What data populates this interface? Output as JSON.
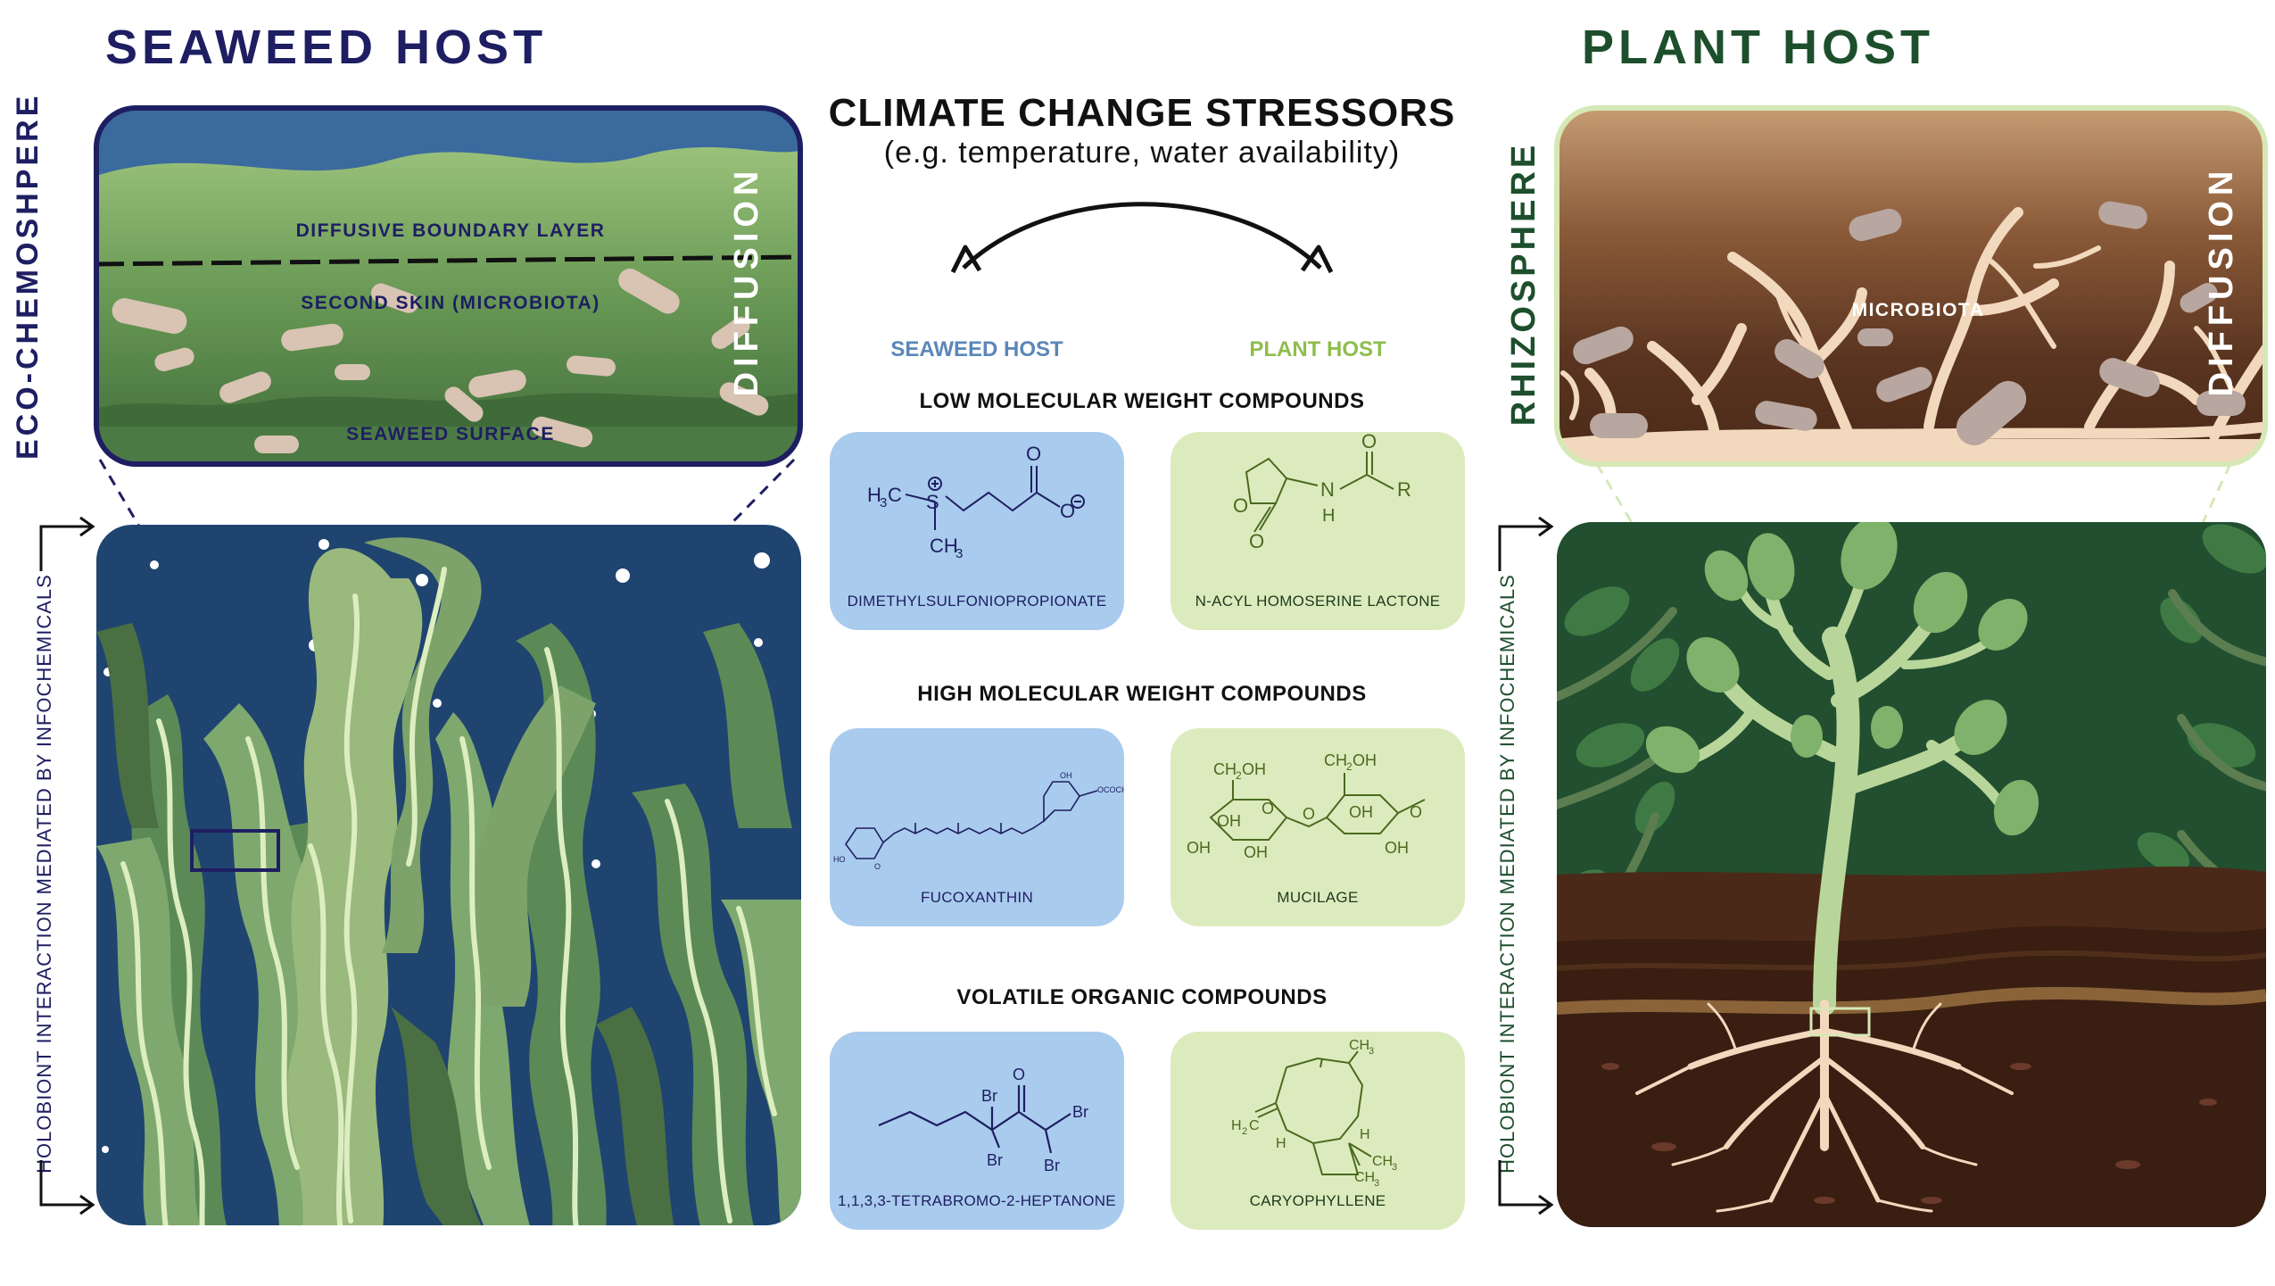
{
  "seaweed": {
    "title": "SEAWEED HOST",
    "side_label": "ECO-CHEMOSHPERE",
    "zoom_labels": [
      "DIFFUSIVE BOUNDARY LAYER",
      "SECOND SKIN (MICROBIOTA)",
      "SEAWEED SURFACE"
    ],
    "diffusion": "DIFFUSION",
    "holobiont": "HOLOBIONT INTERACTION MEDIATED BY INFOCHEMICALS"
  },
  "plant": {
    "title": "PLANT HOST",
    "side_label": "RHIZOSPHERE",
    "zoom_label": "MICROBIOTA",
    "diffusion": "DIFFUSION",
    "holobiont": "HOLOBIONT INTERACTION MEDIATED BY INFOCHEMICALS"
  },
  "center": {
    "title": "CLIMATE CHANGE STRESSORS",
    "subtitle": "(e.g. temperature, water availability)",
    "seaweed_host": "SEAWEED HOST",
    "plant_host": "PLANT HOST",
    "categories": [
      {
        "name": "LOW MOLECULAR WEIGHT COMPOUNDS",
        "seaweed": "DIMETHYLSULFONIOPROPIONATE",
        "plant": "N-ACYL HOMOSERINE LACTONE"
      },
      {
        "name": "HIGH MOLECULAR WEIGHT COMPOUNDS",
        "seaweed": "FUCOXANTHIN",
        "plant": "MUCILAGE"
      },
      {
        "name": "VOLATILE ORGANIC COMPOUNDS",
        "seaweed": "1,1,3,3-TETRABROMO-2-HEPTANONE",
        "plant": "CARYOPHYLLENE"
      }
    ]
  },
  "colors": {
    "seaweed_accent": "#1e1e62",
    "plant_accent": "#1d4f2c",
    "seaweed_card": "#a9cbed",
    "plant_card": "#dcebbd",
    "seaweed_host_label": "#5b87b8",
    "plant_host_label": "#8fbd4e"
  }
}
